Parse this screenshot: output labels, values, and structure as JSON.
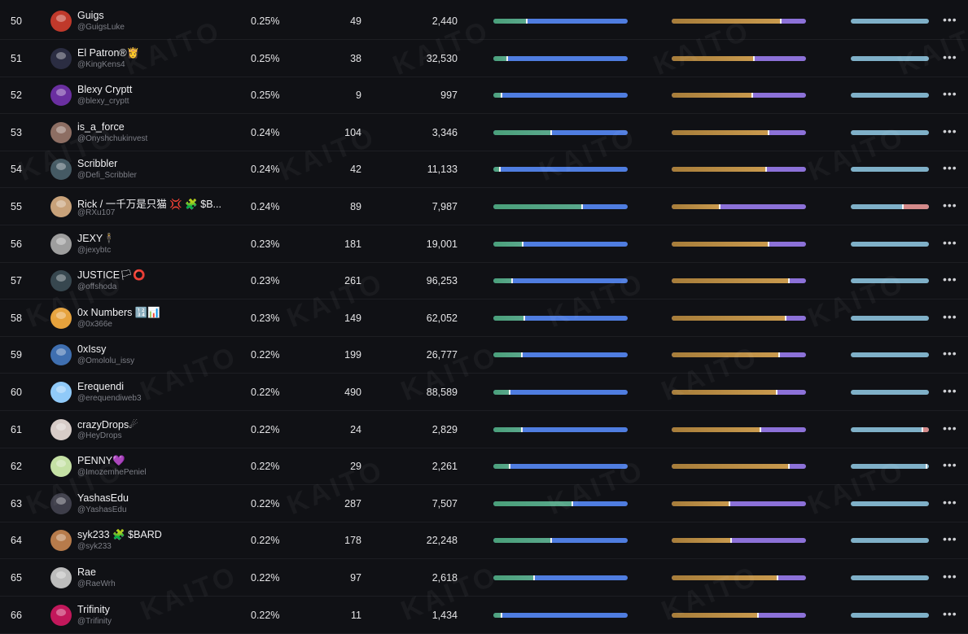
{
  "watermark": "KAITO",
  "menu_glyph": "•••",
  "rows": [
    {
      "rank": "50",
      "name": "Guigs",
      "handle": "@GuigsLuke",
      "pct": "0.25%",
      "n1": "49",
      "n2": "2,440",
      "b1": 0.25,
      "b2": 0.81,
      "b3": 1.0,
      "b3r": 0,
      "avatar": "#c0392b"
    },
    {
      "rank": "51",
      "name": "El Patron®👸",
      "handle": "@KingKens4",
      "pct": "0.25%",
      "n1": "38",
      "n2": "32,530",
      "b1": 0.1,
      "b2": 0.61,
      "b3": 1.0,
      "b3r": 0,
      "avatar": "#2b2d42"
    },
    {
      "rank": "52",
      "name": "Blexy Cryptt",
      "handle": "@blexy_cryptt",
      "pct": "0.25%",
      "n1": "9",
      "n2": "997",
      "b1": 0.06,
      "b2": 0.6,
      "b3": 1.0,
      "b3r": 0,
      "avatar": "#6a2fa0"
    },
    {
      "rank": "53",
      "name": "is_a_force",
      "handle": "@Onyshchukinvest",
      "pct": "0.24%",
      "n1": "104",
      "n2": "3,346",
      "b1": 0.43,
      "b2": 0.72,
      "b3": 1.0,
      "b3r": 0,
      "avatar": "#8d6e63"
    },
    {
      "rank": "54",
      "name": "Scribbler",
      "handle": "@Defi_Scribbler",
      "pct": "0.24%",
      "n1": "42",
      "n2": "11,133",
      "b1": 0.05,
      "b2": 0.7,
      "b3": 1.0,
      "b3r": 0,
      "avatar": "#455a64"
    },
    {
      "rank": "55",
      "name": "Rick / 一千万是只猫 💢 🧩 $B...",
      "handle": "@RXu107",
      "pct": "0.24%",
      "n1": "89",
      "n2": "7,987",
      "b1": 0.66,
      "b2": 0.36,
      "b3": 0.67,
      "b3r": 0.33,
      "avatar": "#c8a27a"
    },
    {
      "rank": "56",
      "name": "JEXY🕴",
      "handle": "@jexybtc",
      "pct": "0.23%",
      "n1": "181",
      "n2": "19,001",
      "b1": 0.22,
      "b2": 0.72,
      "b3": 1.0,
      "b3r": 0,
      "avatar": "#9e9e9e"
    },
    {
      "rank": "57",
      "name": "JUSTICE🏳⭕",
      "handle": "@offshoda",
      "pct": "0.23%",
      "n1": "261",
      "n2": "96,253",
      "b1": 0.14,
      "b2": 0.87,
      "b3": 1.0,
      "b3r": 0,
      "avatar": "#37474f"
    },
    {
      "rank": "58",
      "name": "0x Numbers 🔢📊",
      "handle": "@0x366e",
      "pct": "0.23%",
      "n1": "149",
      "n2": "62,052",
      "b1": 0.23,
      "b2": 0.85,
      "b3": 1.0,
      "b3r": 0,
      "avatar": "#e6a23c"
    },
    {
      "rank": "59",
      "name": "0xIssy",
      "handle": "@Omololu_issy",
      "pct": "0.22%",
      "n1": "199",
      "n2": "26,777",
      "b1": 0.21,
      "b2": 0.8,
      "b3": 1.0,
      "b3r": 0,
      "avatar": "#3f6fb0"
    },
    {
      "rank": "60",
      "name": "Erequendi",
      "handle": "@erequendiweb3",
      "pct": "0.22%",
      "n1": "490",
      "n2": "88,589",
      "b1": 0.12,
      "b2": 0.78,
      "b3": 1.0,
      "b3r": 0,
      "avatar": "#90caf9"
    },
    {
      "rank": "61",
      "name": "crazyDrops☄",
      "handle": "@HeyDrops",
      "pct": "0.22%",
      "n1": "24",
      "n2": "2,829",
      "b1": 0.21,
      "b2": 0.66,
      "b3": 0.92,
      "b3r": 0.08,
      "avatar": "#d7ccc8"
    },
    {
      "rank": "62",
      "name": "PENNY💜",
      "handle": "@ImozemhePeniel",
      "pct": "0.22%",
      "n1": "29",
      "n2": "2,261",
      "b1": 0.12,
      "b2": 0.87,
      "b3": 0.97,
      "b3r": 0,
      "avatar": "#c5e1a5"
    },
    {
      "rank": "63",
      "name": "YashasEdu",
      "handle": "@YashasEdu",
      "pct": "0.22%",
      "n1": "287",
      "n2": "7,507",
      "b1": 0.59,
      "b2": 0.43,
      "b3": 1.0,
      "b3r": 0,
      "avatar": "#3e3e4a"
    },
    {
      "rank": "64",
      "name": "syk233 🧩 $BARD",
      "handle": "@syk233",
      "pct": "0.22%",
      "n1": "178",
      "n2": "22,248",
      "b1": 0.43,
      "b2": 0.44,
      "b3": 1.0,
      "b3r": 0,
      "avatar": "#b77b4b"
    },
    {
      "rank": "65",
      "name": "Rae",
      "handle": "@RaeWrh",
      "pct": "0.22%",
      "n1": "97",
      "n2": "2,618",
      "b1": 0.3,
      "b2": 0.79,
      "b3": 1.0,
      "b3r": 0,
      "avatar": "#bdbdbd"
    },
    {
      "rank": "66",
      "name": "Trifinity",
      "handle": "@Trifinity",
      "pct": "0.22%",
      "n1": "11",
      "n2": "1,434",
      "b1": 0.06,
      "b2": 0.64,
      "b3": 1.0,
      "b3r": 0,
      "avatar": "#c2185b"
    }
  ]
}
